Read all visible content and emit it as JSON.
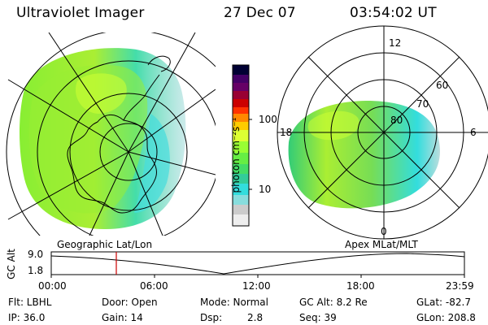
{
  "header": {
    "instrument": "Ultraviolet Imager",
    "date": "27 Dec 07",
    "time": "03:54:02 UT"
  },
  "colorbar": {
    "label": "photon cm⁻²s⁻¹",
    "scale": "log",
    "ticks": [
      "100",
      "10"
    ],
    "colors_top_to_bottom": [
      "#000033",
      "#330044",
      "#660066",
      "#990033",
      "#cc0000",
      "#ff3300",
      "#ff8800",
      "#ffcc00",
      "#ccff33",
      "#88ff33",
      "#44dd55",
      "#33cc99",
      "#33dddd",
      "#88dddd",
      "#cccccc",
      "#eeeeee"
    ]
  },
  "left_map": {
    "label": "Geographic Lat/Lon"
  },
  "right_map": {
    "label": "Apex MLat/MLT",
    "mlt_labels": [
      "12",
      "18",
      "6",
      "0"
    ],
    "mlat_labels": [
      "60",
      "70",
      "80"
    ]
  },
  "altitude_plot": {
    "ylabel": "GC Alt",
    "ytick_top": "9.0",
    "ytick_bottom": "1.8",
    "xticks": [
      "00:00",
      "06:00",
      "12:00",
      "18:00",
      "23:59"
    ],
    "marker_color": "#cc0000"
  },
  "status": {
    "flt": "Flt: LBHL",
    "ip": "IP: 36.0",
    "door": "Door: Open",
    "gain": "Gain: 14",
    "mode": "Mode: Normal",
    "dsp_label": "Dsp:",
    "dsp_value": "2.8",
    "gc_alt": "GC Alt: 8.2 Re",
    "seq": "Seq: 39",
    "glat": "GLat: -82.7",
    "glon": "GLon: 208.8"
  }
}
